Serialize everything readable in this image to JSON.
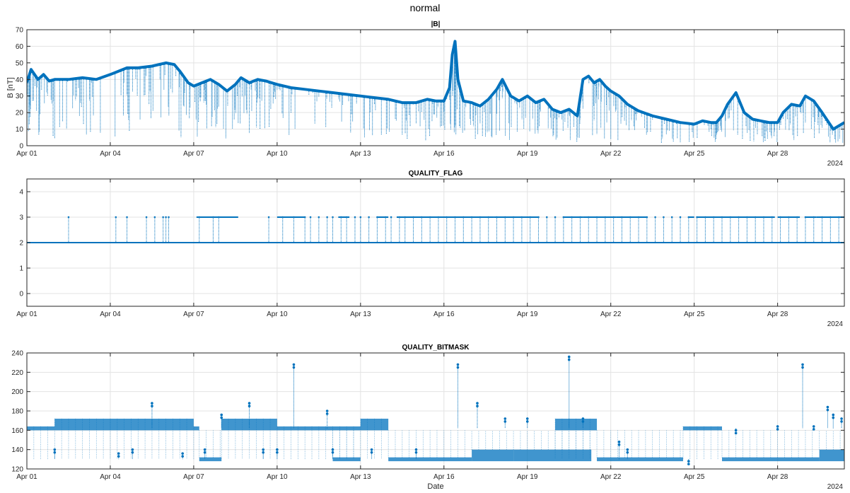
{
  "figure_title": "normal",
  "chart_data": [
    {
      "type": "line",
      "title": "|B|",
      "xlabel": "",
      "ylabel": "B [nT]",
      "xlim": [
        0,
        29.4
      ],
      "ylim": [
        0,
        70
      ],
      "x_ticks": [
        0,
        3,
        6,
        9,
        12,
        15,
        18,
        21,
        24,
        27
      ],
      "x_tick_labels": [
        "Apr 01",
        "Apr 04",
        "Apr 07",
        "Apr 10",
        "Apr 13",
        "Apr 16",
        "Apr 19",
        "Apr 22",
        "Apr 25",
        "Apr 28"
      ],
      "y_ticks": [
        0,
        10,
        20,
        30,
        40,
        50,
        60,
        70
      ],
      "y_tick_labels": [
        "0",
        "10",
        "20",
        "30",
        "40",
        "50",
        "60",
        "70"
      ],
      "year_label": "2024",
      "grid": true,
      "color": "#0072BD",
      "series": [
        {
          "x": [
            0.0,
            0.15,
            0.4,
            0.6,
            0.8,
            1.0,
            1.5,
            2.0,
            2.5,
            3.0,
            3.3,
            3.6,
            4.0,
            4.5,
            5.0,
            5.3,
            5.5,
            5.8,
            6.0,
            6.3,
            6.6,
            6.9,
            7.2,
            7.5,
            7.7,
            8.0,
            8.3,
            8.6,
            9.0,
            9.5,
            10.0,
            10.5,
            11.0,
            11.5,
            12.0,
            12.5,
            13.0,
            13.5,
            14.0,
            14.4,
            14.7,
            15.0,
            15.2,
            15.3,
            15.4,
            15.5,
            15.7,
            16.0,
            16.3,
            16.6,
            16.9,
            17.1,
            17.4,
            17.7,
            18.0,
            18.3,
            18.6,
            18.9,
            19.2,
            19.5,
            19.8,
            20.0,
            20.2,
            20.4,
            20.6,
            20.8,
            21.0,
            21.3,
            21.6,
            22.0,
            22.5,
            23.0,
            23.5,
            24.0,
            24.3,
            24.6,
            24.8,
            25.0,
            25.2,
            25.5,
            25.8,
            26.1,
            26.4,
            26.7,
            27.0,
            27.2,
            27.5,
            27.8,
            28.0,
            28.3,
            28.6,
            29.0,
            29.4
          ],
          "y": [
            38,
            46,
            40,
            43,
            39,
            40,
            40,
            41,
            40,
            43,
            45,
            47,
            47,
            48,
            50,
            49,
            45,
            38,
            36,
            38,
            40,
            37,
            33,
            37,
            41,
            38,
            40,
            39,
            37,
            35,
            34,
            33,
            32,
            31,
            30,
            29,
            28,
            26,
            26,
            28,
            27,
            27,
            35,
            55,
            63,
            40,
            27,
            26,
            24,
            28,
            34,
            40,
            30,
            27,
            30,
            26,
            28,
            22,
            20,
            22,
            18,
            40,
            42,
            38,
            40,
            36,
            33,
            30,
            25,
            21,
            18,
            16,
            14,
            13,
            15,
            14,
            14,
            18,
            25,
            32,
            20,
            16,
            15,
            14,
            14,
            20,
            25,
            24,
            30,
            27,
            20,
            10,
            14
          ]
        }
      ]
    },
    {
      "type": "line",
      "title": "QUALITY_FLAG",
      "xlabel": "",
      "ylabel": "",
      "xlim": [
        0,
        29.4
      ],
      "ylim": [
        -0.5,
        4.5
      ],
      "x_ticks": [
        0,
        3,
        6,
        9,
        12,
        15,
        18,
        21,
        24,
        27
      ],
      "x_tick_labels": [
        "Apr 01",
        "Apr 04",
        "Apr 07",
        "Apr 10",
        "Apr 13",
        "Apr 16",
        "Apr 19",
        "Apr 22",
        "Apr 25",
        "Apr 28"
      ],
      "y_ticks": [
        0,
        1,
        2,
        3,
        4
      ],
      "y_tick_labels": [
        "0",
        "1",
        "2",
        "3",
        "4"
      ],
      "year_label": "2024",
      "grid": true,
      "color": "#0072BD",
      "baseline_value": 2,
      "high_value": 3,
      "segments_at_3": [
        [
          6.1,
          7.1
        ],
        [
          7.0,
          7.6
        ],
        [
          9.0,
          10.0
        ],
        [
          11.2,
          11.6
        ],
        [
          12.6,
          13.0
        ],
        [
          13.3,
          16.2
        ],
        [
          16.0,
          16.8
        ],
        [
          16.8,
          18.4
        ],
        [
          19.3,
          20.0
        ],
        [
          20.0,
          21.2
        ],
        [
          21.2,
          22.3
        ],
        [
          23.8,
          24.0
        ],
        [
          24.1,
          26.9
        ],
        [
          27.0,
          27.8
        ],
        [
          28.0,
          28.4
        ],
        [
          28.4,
          29.4
        ]
      ],
      "spikes_at_3": [
        1.5,
        3.2,
        3.6,
        4.3,
        4.6,
        4.9,
        5.0,
        5.1,
        6.2,
        6.7,
        6.9,
        8.7,
        9.2,
        9.6,
        10.0,
        10.2,
        10.5,
        10.8,
        11.0,
        11.3,
        11.5,
        11.8,
        12.0,
        12.3,
        12.6,
        12.9,
        13.1,
        13.4,
        13.6,
        13.9,
        14.2,
        14.5,
        14.8,
        15.1,
        15.4,
        15.7,
        16.0,
        16.3,
        16.6,
        16.9,
        17.2,
        17.5,
        17.8,
        18.1,
        18.4,
        18.7,
        19.0,
        19.3,
        19.6,
        19.9,
        20.2,
        20.5,
        20.8,
        21.1,
        21.4,
        21.7,
        22.0,
        22.3,
        22.6,
        22.9,
        23.2,
        23.5,
        23.8,
        24.1,
        24.4,
        24.7,
        25.0,
        25.3,
        25.6,
        25.9,
        26.2,
        26.5,
        26.8,
        27.1,
        27.4,
        27.7,
        28.0,
        28.3,
        28.6,
        28.9,
        29.2
      ]
    },
    {
      "type": "scatter",
      "title": "QUALITY_BITMASK",
      "xlabel": "Date",
      "ylabel": "",
      "xlim": [
        0,
        29.4
      ],
      "ylim": [
        120,
        240
      ],
      "x_ticks": [
        0,
        3,
        6,
        9,
        12,
        15,
        18,
        21,
        24,
        27
      ],
      "x_tick_labels": [
        "Apr 01",
        "Apr 04",
        "Apr 07",
        "Apr 10",
        "Apr 13",
        "Apr 16",
        "Apr 19",
        "Apr 22",
        "Apr 25",
        "Apr 28"
      ],
      "y_ticks": [
        120,
        140,
        160,
        180,
        200,
        220,
        240
      ],
      "y_tick_labels": [
        "120",
        "140",
        "160",
        "180",
        "200",
        "220",
        "240"
      ],
      "year_label": "2024",
      "grid": true,
      "color": "#0072BD",
      "bands": [
        {
          "x0": 0.0,
          "x1": 1.0,
          "y0": 160,
          "y1": 164
        },
        {
          "x0": 1.0,
          "x1": 6.0,
          "y0": 160,
          "y1": 172
        },
        {
          "x0": 6.0,
          "x1": 6.2,
          "y0": 160,
          "y1": 164
        },
        {
          "x0": 6.2,
          "x1": 7.0,
          "y0": 128,
          "y1": 132
        },
        {
          "x0": 7.0,
          "x1": 9.0,
          "y0": 160,
          "y1": 172
        },
        {
          "x0": 9.0,
          "x1": 12.0,
          "y0": 160,
          "y1": 164
        },
        {
          "x0": 11.0,
          "x1": 12.0,
          "y0": 128,
          "y1": 132
        },
        {
          "x0": 12.0,
          "x1": 13.0,
          "y0": 160,
          "y1": 172
        },
        {
          "x0": 13.0,
          "x1": 16.0,
          "y0": 128,
          "y1": 132
        },
        {
          "x0": 16.0,
          "x1": 17.5,
          "y0": 128,
          "y1": 140
        },
        {
          "x0": 17.5,
          "x1": 20.3,
          "y0": 128,
          "y1": 140
        },
        {
          "x0": 19.0,
          "x1": 20.5,
          "y0": 160,
          "y1": 172
        },
        {
          "x0": 20.5,
          "x1": 23.6,
          "y0": 128,
          "y1": 132
        },
        {
          "x0": 23.6,
          "x1": 25.0,
          "y0": 160,
          "y1": 164
        },
        {
          "x0": 25.0,
          "x1": 28.5,
          "y0": 128,
          "y1": 132
        },
        {
          "x0": 28.5,
          "x1": 29.4,
          "y0": 128,
          "y1": 140
        }
      ],
      "spikes": [
        {
          "x": 1.0,
          "y": 140
        },
        {
          "x": 3.3,
          "y": 136
        },
        {
          "x": 3.8,
          "y": 140
        },
        {
          "x": 4.5,
          "y": 188
        },
        {
          "x": 5.6,
          "y": 136
        },
        {
          "x": 6.4,
          "y": 140
        },
        {
          "x": 7.0,
          "y": 176
        },
        {
          "x": 8.0,
          "y": 188
        },
        {
          "x": 8.5,
          "y": 140
        },
        {
          "x": 9.0,
          "y": 140
        },
        {
          "x": 9.6,
          "y": 228
        },
        {
          "x": 10.8,
          "y": 180
        },
        {
          "x": 11.0,
          "y": 140
        },
        {
          "x": 12.4,
          "y": 140
        },
        {
          "x": 14.0,
          "y": 140
        },
        {
          "x": 15.5,
          "y": 228
        },
        {
          "x": 16.2,
          "y": 188
        },
        {
          "x": 17.2,
          "y": 172
        },
        {
          "x": 18.0,
          "y": 172
        },
        {
          "x": 19.5,
          "y": 236
        },
        {
          "x": 20.0,
          "y": 172
        },
        {
          "x": 21.3,
          "y": 148
        },
        {
          "x": 21.6,
          "y": 140
        },
        {
          "x": 23.8,
          "y": 128
        },
        {
          "x": 25.5,
          "y": 160
        },
        {
          "x": 27.0,
          "y": 164
        },
        {
          "x": 27.9,
          "y": 228
        },
        {
          "x": 28.3,
          "y": 164
        },
        {
          "x": 28.8,
          "y": 184
        },
        {
          "x": 29.0,
          "y": 176
        },
        {
          "x": 29.3,
          "y": 172
        }
      ]
    }
  ]
}
